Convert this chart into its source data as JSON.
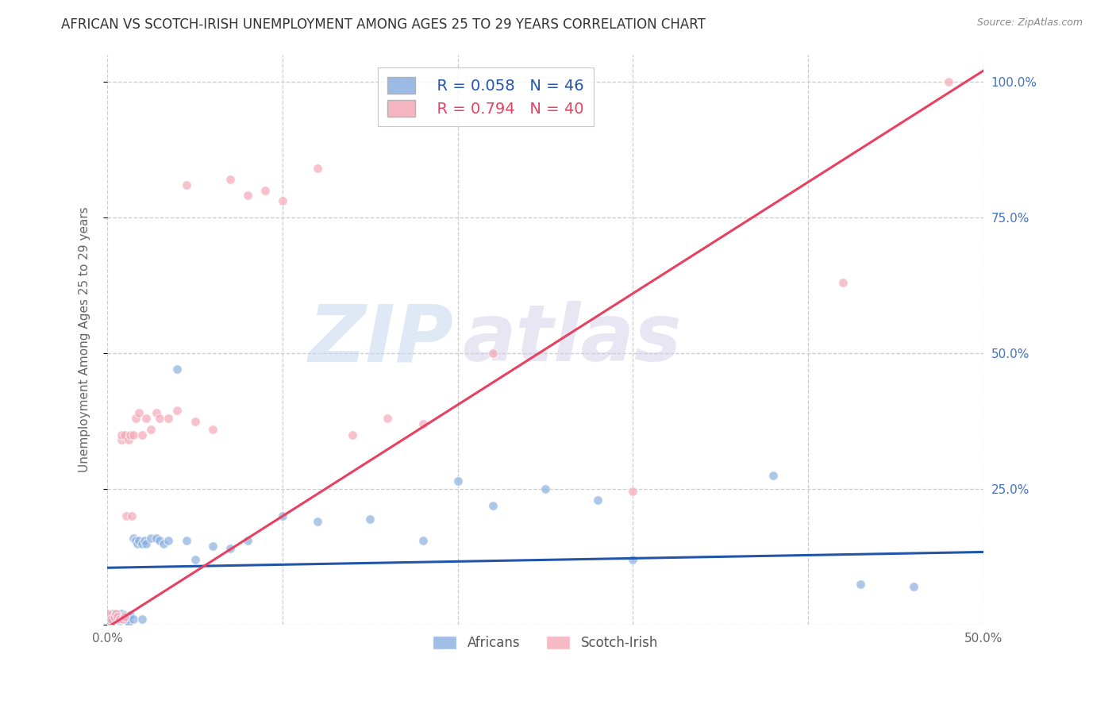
{
  "title": "AFRICAN VS SCOTCH-IRISH UNEMPLOYMENT AMONG AGES 25 TO 29 YEARS CORRELATION CHART",
  "source": "Source: ZipAtlas.com",
  "ylabel": "Unemployment Among Ages 25 to 29 years",
  "xlim": [
    0.0,
    0.5
  ],
  "ylim": [
    0.0,
    1.05
  ],
  "x_ticks": [
    0.0,
    0.1,
    0.2,
    0.3,
    0.4,
    0.5
  ],
  "x_tick_labels": [
    "0.0%",
    "",
    "",
    "",
    "",
    "50.0%"
  ],
  "y_ticks": [
    0.0,
    0.25,
    0.5,
    0.75,
    1.0
  ],
  "y_tick_labels": [
    "",
    "25.0%",
    "50.0%",
    "75.0%",
    "100.0%"
  ],
  "african_color": "#8ab0e0",
  "scotch_color": "#f4a8b8",
  "african_line_color": "#2255aa",
  "scotch_line_color": "#e84060",
  "legend_r_african": "R = 0.058",
  "legend_n_african": "N = 46",
  "legend_r_scotch": "R = 0.794",
  "legend_n_scotch": "N = 40",
  "watermark_zip": "ZIP",
  "watermark_atlas": "atlas",
  "african_slope": 0.058,
  "african_intercept": 0.105,
  "scotch_slope": 2.05,
  "scotch_intercept": -0.005,
  "marker_size": 70,
  "title_fontsize": 12,
  "axis_label_fontsize": 11,
  "tick_fontsize": 11,
  "legend_fontsize": 14,
  "background_color": "#ffffff",
  "grid_color": "#cccccc",
  "right_tick_color": "#4472c4",
  "africans_x": [
    0.0,
    0.002,
    0.003,
    0.005,
    0.006,
    0.007,
    0.008,
    0.009,
    0.01,
    0.01,
    0.011,
    0.012,
    0.012,
    0.013,
    0.015,
    0.015,
    0.016,
    0.017,
    0.018,
    0.02,
    0.02,
    0.021,
    0.022,
    0.025,
    0.028,
    0.03,
    0.032,
    0.035,
    0.04,
    0.045,
    0.05,
    0.06,
    0.07,
    0.08,
    0.1,
    0.12,
    0.15,
    0.18,
    0.2,
    0.22,
    0.25,
    0.28,
    0.3,
    0.38,
    0.43,
    0.46
  ],
  "africans_y": [
    0.01,
    0.005,
    0.02,
    0.01,
    0.015,
    0.008,
    0.02,
    0.012,
    0.015,
    0.018,
    0.01,
    0.015,
    0.005,
    0.018,
    0.01,
    0.16,
    0.155,
    0.15,
    0.155,
    0.01,
    0.15,
    0.155,
    0.15,
    0.16,
    0.16,
    0.155,
    0.15,
    0.155,
    0.47,
    0.155,
    0.12,
    0.145,
    0.14,
    0.155,
    0.2,
    0.19,
    0.195,
    0.155,
    0.265,
    0.22,
    0.25,
    0.23,
    0.12,
    0.275,
    0.075,
    0.07
  ],
  "scotch_x": [
    0.0,
    0.002,
    0.004,
    0.005,
    0.006,
    0.007,
    0.008,
    0.008,
    0.009,
    0.01,
    0.01,
    0.011,
    0.012,
    0.013,
    0.014,
    0.015,
    0.016,
    0.018,
    0.02,
    0.022,
    0.025,
    0.028,
    0.03,
    0.035,
    0.04,
    0.045,
    0.05,
    0.06,
    0.07,
    0.08,
    0.09,
    0.1,
    0.12,
    0.14,
    0.16,
    0.18,
    0.22,
    0.3,
    0.42,
    0.48
  ],
  "scotch_y": [
    0.02,
    0.01,
    0.015,
    0.02,
    0.015,
    0.01,
    0.34,
    0.35,
    0.01,
    0.015,
    0.35,
    0.2,
    0.34,
    0.35,
    0.2,
    0.35,
    0.38,
    0.39,
    0.35,
    0.38,
    0.36,
    0.39,
    0.38,
    0.38,
    0.395,
    0.81,
    0.375,
    0.36,
    0.82,
    0.79,
    0.8,
    0.78,
    0.84,
    0.35,
    0.38,
    0.37,
    0.5,
    0.245,
    0.63,
    1.0
  ]
}
